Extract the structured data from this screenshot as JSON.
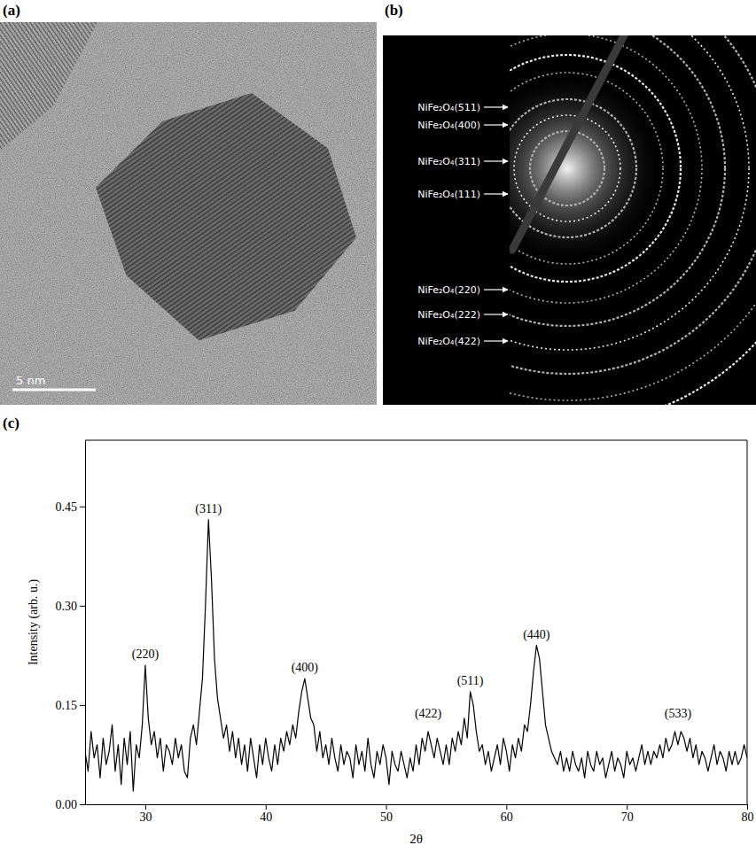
{
  "tem_image": {
    "label": "(a)",
    "scale_bar": "5 nm"
  },
  "saed_pattern": {
    "label": "(b)",
    "ring_labels": [
      "NiFe₂O₄(511)",
      "NiFe₂O₄(400)",
      "NiFe₂O₄(311)",
      "NiFe₂O₄(111)",
      "NiFe₂O₄(220)",
      "NiFe₂O₄(222)",
      "NiFe₂O₄(422)"
    ]
  },
  "chart_data": {
    "type": "line",
    "title": "(c)",
    "x_label": "2θ",
    "y_label": "Intensity (arb. u.)",
    "color": "#000000",
    "grid": false,
    "xlim": [
      25,
      80
    ],
    "xticks": [
      30,
      40,
      50,
      60,
      70,
      80
    ],
    "ylim": [
      0,
      0.55
    ],
    "yticks": [
      {
        "value": 0,
        "label": "0.00"
      },
      0.15,
      {
        "value": 0.3,
        "label": "0.30"
      },
      0.45
    ],
    "x": [
      25,
      25.25,
      25.5,
      25.75,
      26,
      26.25,
      26.5,
      26.75,
      27,
      27.25,
      27.5,
      27.75,
      28,
      28.25,
      28.5,
      28.75,
      29,
      29.25,
      29.5,
      29.75,
      30,
      30.25,
      30.5,
      30.75,
      31,
      31.25,
      31.5,
      31.75,
      32,
      32.25,
      32.5,
      32.75,
      33,
      33.25,
      33.5,
      33.75,
      34,
      34.25,
      34.5,
      34.75,
      35,
      35.25,
      35.5,
      35.75,
      36,
      36.25,
      36.5,
      36.75,
      37,
      37.25,
      37.5,
      37.75,
      38,
      38.25,
      38.5,
      38.75,
      39,
      39.25,
      39.5,
      39.75,
      40,
      40.25,
      40.5,
      40.75,
      41,
      41.25,
      41.5,
      41.75,
      42,
      42.25,
      42.5,
      42.75,
      43,
      43.25,
      43.5,
      43.75,
      44,
      44.25,
      44.5,
      44.75,
      45,
      45.25,
      45.5,
      45.75,
      46,
      46.25,
      46.5,
      46.75,
      47,
      47.25,
      47.5,
      47.75,
      48,
      48.25,
      48.5,
      48.75,
      49,
      49.25,
      49.5,
      49.75,
      50,
      50.25,
      50.5,
      50.75,
      51,
      51.25,
      51.5,
      51.75,
      52,
      52.25,
      52.5,
      52.75,
      53,
      53.25,
      53.5,
      53.75,
      54,
      54.25,
      54.5,
      54.75,
      55,
      55.25,
      55.5,
      55.75,
      56,
      56.25,
      56.5,
      56.75,
      57,
      57.25,
      57.5,
      57.75,
      58,
      58.25,
      58.5,
      58.75,
      59,
      59.25,
      59.5,
      59.75,
      60,
      60.25,
      60.5,
      60.75,
      61,
      61.25,
      61.5,
      61.75,
      62,
      62.25,
      62.5,
      62.75,
      63,
      63.25,
      63.5,
      63.75,
      64,
      64.25,
      64.5,
      64.75,
      65,
      65.25,
      65.5,
      65.75,
      66,
      66.25,
      66.5,
      66.75,
      67,
      67.25,
      67.5,
      67.75,
      68,
      68.25,
      68.5,
      68.75,
      69,
      69.25,
      69.5,
      69.75,
      70,
      70.25,
      70.5,
      70.75,
      71,
      71.25,
      71.5,
      71.75,
      72,
      72.25,
      72.5,
      72.75,
      73,
      73.25,
      73.5,
      73.75,
      74,
      74.25,
      74.5,
      74.75,
      75,
      75.25,
      75.5,
      75.75,
      76,
      76.25,
      76.5,
      76.75,
      77,
      77.25,
      77.5,
      77.75,
      78,
      78.25,
      78.5,
      78.75,
      79,
      79.25,
      79.5,
      79.75,
      80
    ],
    "values": [
      0.08,
      0.05,
      0.11,
      0.07,
      0.09,
      0.04,
      0.1,
      0.06,
      0.08,
      0.12,
      0.05,
      0.09,
      0.03,
      0.1,
      0.06,
      0.11,
      0.02,
      0.09,
      0.07,
      0.12,
      0.21,
      0.13,
      0.09,
      0.11,
      0.07,
      0.1,
      0.05,
      0.09,
      0.08,
      0.06,
      0.1,
      0.07,
      0.09,
      0.05,
      0.04,
      0.1,
      0.12,
      0.09,
      0.14,
      0.19,
      0.3,
      0.43,
      0.34,
      0.22,
      0.16,
      0.13,
      0.1,
      0.12,
      0.08,
      0.11,
      0.07,
      0.1,
      0.06,
      0.09,
      0.05,
      0.1,
      0.07,
      0.04,
      0.09,
      0.06,
      0.1,
      0.07,
      0.05,
      0.09,
      0.06,
      0.1,
      0.08,
      0.11,
      0.09,
      0.12,
      0.1,
      0.14,
      0.17,
      0.19,
      0.16,
      0.13,
      0.12,
      0.08,
      0.11,
      0.07,
      0.09,
      0.06,
      0.1,
      0.07,
      0.05,
      0.09,
      0.06,
      0.08,
      0.07,
      0.04,
      0.09,
      0.06,
      0.08,
      0.05,
      0.1,
      0.06,
      0.04,
      0.08,
      0.06,
      0.09,
      0.07,
      0.03,
      0.08,
      0.06,
      0.05,
      0.08,
      0.06,
      0.04,
      0.07,
      0.05,
      0.09,
      0.06,
      0.1,
      0.08,
      0.11,
      0.09,
      0.07,
      0.1,
      0.08,
      0.06,
      0.09,
      0.06,
      0.1,
      0.08,
      0.11,
      0.09,
      0.13,
      0.1,
      0.17,
      0.15,
      0.11,
      0.08,
      0.09,
      0.06,
      0.08,
      0.05,
      0.07,
      0.09,
      0.06,
      0.1,
      0.08,
      0.05,
      0.09,
      0.07,
      0.1,
      0.08,
      0.12,
      0.11,
      0.15,
      0.2,
      0.24,
      0.22,
      0.17,
      0.12,
      0.1,
      0.08,
      0.07,
      0.06,
      0.08,
      0.05,
      0.07,
      0.05,
      0.08,
      0.06,
      0.05,
      0.07,
      0.04,
      0.08,
      0.06,
      0.05,
      0.08,
      0.06,
      0.07,
      0.04,
      0.06,
      0.08,
      0.05,
      0.07,
      0.06,
      0.04,
      0.08,
      0.06,
      0.07,
      0.05,
      0.07,
      0.09,
      0.06,
      0.08,
      0.06,
      0.08,
      0.07,
      0.09,
      0.07,
      0.1,
      0.08,
      0.09,
      0.11,
      0.09,
      0.11,
      0.1,
      0.08,
      0.1,
      0.07,
      0.09,
      0.06,
      0.08,
      0.07,
      0.05,
      0.07,
      0.09,
      0.06,
      0.08,
      0.07,
      0.05,
      0.08,
      0.06,
      0.08,
      0.06,
      0.07,
      0.09,
      0.07
    ],
    "annotations": [
      {
        "text": "(220)",
        "x": 30,
        "y": 0.21
      },
      {
        "text": "(311)",
        "x": 35.25,
        "y": 0.43
      },
      {
        "text": "(400)",
        "x": 43.25,
        "y": 0.19
      },
      {
        "text": "(422)",
        "x": 53.5,
        "y": 0.12
      },
      {
        "text": "(511)",
        "x": 57,
        "y": 0.17
      },
      {
        "text": "(440)",
        "x": 62.5,
        "y": 0.24
      },
      {
        "text": "(533)",
        "x": 74.25,
        "y": 0.12
      }
    ]
  }
}
